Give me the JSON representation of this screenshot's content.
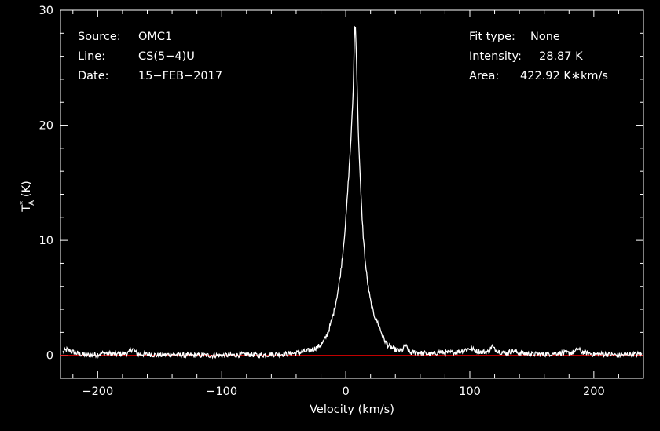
{
  "header_left": {
    "source_label": "Source:",
    "source_value": "OMC1",
    "line_label": "Line:",
    "line_value": "CS(5−4)U",
    "date_label": "Date:",
    "date_value": "15−FEB−2017"
  },
  "header_right": {
    "fit_label": "Fit type:",
    "fit_value": "None",
    "intensity_label": "Intensity:",
    "intensity_value": "28.87 K",
    "area_label": "Area:",
    "area_value": "422.92 K∗km/s"
  },
  "colors": {
    "background": "#000000",
    "axes": "#ffffff",
    "spectrum": "#ffffff",
    "baseline": "#ff0000"
  },
  "chart_data": {
    "type": "line",
    "xlabel": "Velocity (km/s)",
    "ylabel_main": "T",
    "ylabel_sup": "*",
    "ylabel_sub": "A",
    "ylabel_unit": "(K)",
    "xlim": [
      -230,
      240
    ],
    "ylim": [
      -2,
      30
    ],
    "xticks": [
      -200,
      -100,
      0,
      100,
      200
    ],
    "xtick_labels": [
      "−200",
      "−100",
      "0",
      "100",
      "200"
    ],
    "yticks": [
      0,
      10,
      20,
      30
    ],
    "ytick_labels": [
      "0",
      "10",
      "20",
      "30"
    ],
    "grid": false,
    "baseline_value": 0,
    "series": [
      {
        "x": [
          -228,
          -225,
          -215,
          -205,
          -195,
          -185,
          -175,
          -172,
          -168,
          -160,
          -150,
          -140,
          -130,
          -120,
          -110,
          -100,
          -90,
          -80,
          -70,
          -60,
          -50,
          -40,
          -35,
          -30,
          -25,
          -20,
          -18,
          -16,
          -14,
          -12,
          -10,
          -8,
          -6,
          -4,
          -2,
          0,
          1,
          2,
          3,
          4,
          5,
          6,
          6.5,
          7,
          7.5,
          8,
          8.5,
          9,
          9.5,
          10,
          11,
          12,
          13,
          14,
          16,
          18,
          20,
          22,
          24,
          26,
          28,
          30,
          33,
          36,
          40,
          44,
          46,
          48,
          50,
          52,
          56,
          60,
          70,
          75,
          80,
          90,
          100,
          105,
          110,
          115,
          118,
          120,
          125,
          130,
          135,
          140,
          150,
          160,
          170,
          180,
          185,
          187,
          190,
          200,
          210,
          220,
          230,
          238
        ],
        "y": [
          0.3,
          0.5,
          0.1,
          0.0,
          0.2,
          0.1,
          0.2,
          0.6,
          0.1,
          0.1,
          0.0,
          0.1,
          0.0,
          0.0,
          0.0,
          0.0,
          0.0,
          0.1,
          0.0,
          0.1,
          0.1,
          0.2,
          0.3,
          0.4,
          0.6,
          0.9,
          1.2,
          1.6,
          2.1,
          2.8,
          3.6,
          4.6,
          5.8,
          7.3,
          9.3,
          11.7,
          13.3,
          15.0,
          16.7,
          18.5,
          20.5,
          23.0,
          25.5,
          27.8,
          28.87,
          28.2,
          26.5,
          24.3,
          22.0,
          20.0,
          17.0,
          14.5,
          12.3,
          10.5,
          7.8,
          6.0,
          4.7,
          3.8,
          3.2,
          2.8,
          2.2,
          1.6,
          1.0,
          0.7,
          0.5,
          0.4,
          0.5,
          0.9,
          0.5,
          0.2,
          0.3,
          0.2,
          0.1,
          0.3,
          0.2,
          0.3,
          0.6,
          0.4,
          0.3,
          0.3,
          0.8,
          0.5,
          0.3,
          0.2,
          0.4,
          0.2,
          0.1,
          0.1,
          0.2,
          0.2,
          0.3,
          0.6,
          0.3,
          0.1,
          0.1,
          0.0,
          0.1,
          0.1
        ]
      }
    ]
  }
}
